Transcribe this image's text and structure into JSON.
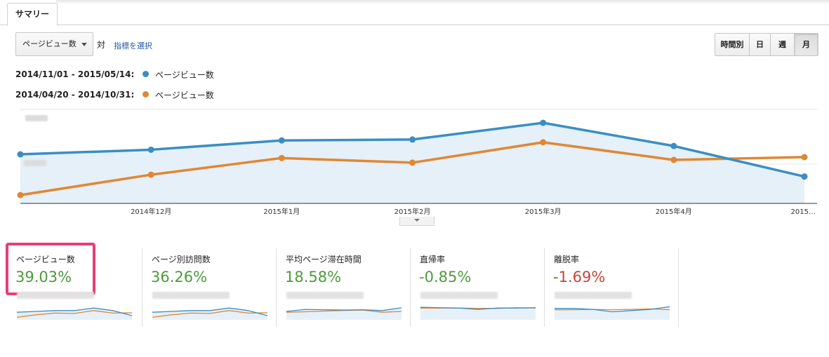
{
  "tabs": {
    "summary": "サマリー"
  },
  "controls": {
    "metric_select": "ページビュー数",
    "vs": "対",
    "pick_metric": "指標を選択",
    "periods": [
      "時間別",
      "日",
      "週",
      "月"
    ],
    "active_period": "月"
  },
  "legend": [
    {
      "range": "2014/11/01 - 2015/05/14:",
      "name": "ページビュー数",
      "color": "#3a8ec4"
    },
    {
      "range": "2014/04/20 - 2014/10/31:",
      "name": "ページビュー数",
      "color": "#e08733"
    }
  ],
  "chart_data": {
    "type": "line",
    "x": [
      "",
      "2014年12月",
      "2015年1月",
      "2015年2月",
      "2015年3月",
      "2015年4月",
      "2015…"
    ],
    "series": [
      {
        "name": "ページビュー数",
        "color": "#3a8ec4",
        "values": [
          53,
          58,
          68,
          69,
          87,
          62,
          29
        ]
      },
      {
        "name": "ページビュー数",
        "color": "#e08733",
        "values": [
          9,
          31,
          49,
          44,
          66,
          47,
          50
        ]
      }
    ],
    "ylim": [
      0,
      100
    ],
    "grid": true
  },
  "cards": [
    {
      "label": "ページビュー数",
      "value": "39.03%",
      "color": "#4e9a3c",
      "spark_a": [
        0.45,
        0.5,
        0.55,
        0.55,
        0.7,
        0.55,
        0.25
      ],
      "spark_b": [
        0.15,
        0.3,
        0.4,
        0.38,
        0.55,
        0.4,
        0.42
      ]
    },
    {
      "label": "ページ別訪問数",
      "value": "36.26%",
      "color": "#4e9a3c",
      "spark_a": [
        0.45,
        0.5,
        0.55,
        0.55,
        0.7,
        0.55,
        0.25
      ],
      "spark_b": [
        0.15,
        0.3,
        0.4,
        0.38,
        0.55,
        0.4,
        0.42
      ]
    },
    {
      "label": "平均ページ滞在時間",
      "value": "18.58%",
      "color": "#4e9a3c",
      "spark_a": [
        0.5,
        0.62,
        0.6,
        0.58,
        0.6,
        0.55,
        0.72
      ],
      "spark_b": [
        0.45,
        0.48,
        0.52,
        0.56,
        0.58,
        0.45,
        0.5
      ]
    },
    {
      "label": "直帰率",
      "value": "-0.85%",
      "color": "#4e9a3c",
      "spark_a": [
        0.75,
        0.72,
        0.7,
        0.62,
        0.7,
        0.7,
        0.72
      ],
      "spark_b": [
        0.7,
        0.7,
        0.7,
        0.68,
        0.68,
        0.72,
        0.7
      ]
    },
    {
      "label": "離脱率",
      "value": "-1.69%",
      "color": "#c1483a",
      "spark_a": [
        0.68,
        0.68,
        0.62,
        0.48,
        0.55,
        0.62,
        0.78
      ],
      "spark_b": [
        0.6,
        0.6,
        0.62,
        0.6,
        0.62,
        0.65,
        0.6
      ]
    }
  ]
}
